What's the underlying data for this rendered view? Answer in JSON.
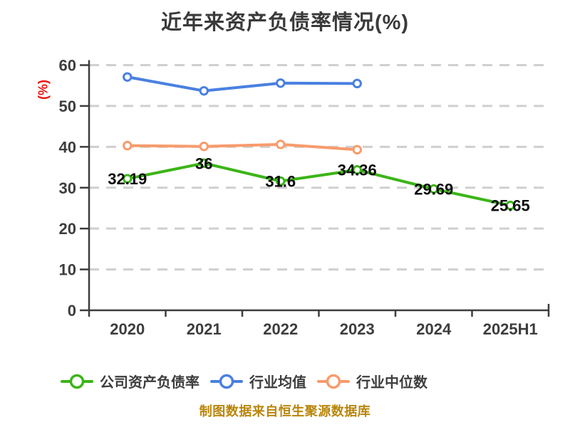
{
  "title": "近年来资产负债率情况(%)",
  "footer_note": "制图数据来自恒生聚源数据库",
  "colors": {
    "company": "#3bb517",
    "industry_avg": "#4a80e0",
    "industry_median": "#f89b6c",
    "axis": "#3d3d3d",
    "tick_label": "#3d3d3d",
    "grid": "#cfcfcf",
    "data_label": "#0a0a0a",
    "y_axis_title": "#ea1410",
    "title": "#3a3a3a",
    "footer": "#b8860b",
    "marker_fill": "#ffffff",
    "background": "#ffffff"
  },
  "chart_data": {
    "type": "line",
    "title": "近年来资产负债率情况(%)",
    "categories": [
      "2020",
      "2021",
      "2022",
      "2023",
      "2024",
      "2025H1"
    ],
    "series": [
      {
        "name": "公司资产负债率",
        "color": "#3bb517",
        "values": [
          32.19,
          36,
          31.6,
          34.36,
          29.69,
          25.65
        ],
        "labels": [
          "32.19",
          "36",
          "31.6",
          "34.36",
          "29.69",
          "25.65"
        ],
        "data_labels": true
      },
      {
        "name": "行业均值",
        "color": "#4a80e0",
        "values": [
          57.1,
          53.7,
          55.6,
          55.5,
          null,
          null
        ],
        "labels": [],
        "data_labels": false
      },
      {
        "name": "行业中位数",
        "color": "#f89b6c",
        "values": [
          40.3,
          40.1,
          40.6,
          39.3,
          null,
          null
        ],
        "labels": [],
        "data_labels": false
      }
    ],
    "xlabel": "",
    "ylabel": "(%)",
    "ylim": [
      0,
      60
    ],
    "yticks": [
      0,
      10,
      20,
      30,
      40,
      50,
      60
    ],
    "ytick_step": 10,
    "grid": true,
    "grid_style": "dashed",
    "legend_position": "bottom",
    "marker_style": "open-circle"
  }
}
